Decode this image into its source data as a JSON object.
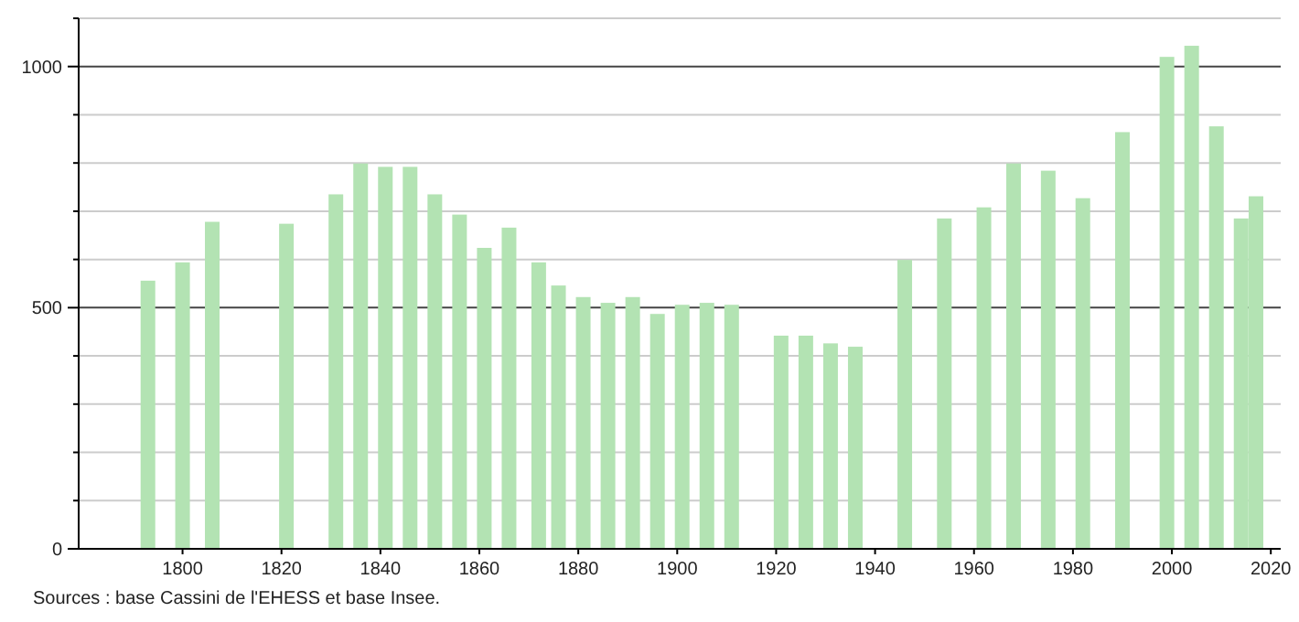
{
  "chart_data": {
    "type": "bar",
    "x": [
      1793,
      1800,
      1806,
      1821,
      1831,
      1836,
      1841,
      1846,
      1851,
      1856,
      1861,
      1866,
      1872,
      1876,
      1881,
      1886,
      1891,
      1896,
      1901,
      1906,
      1911,
      1921,
      1926,
      1931,
      1936,
      1946,
      1954,
      1962,
      1968,
      1975,
      1982,
      1990,
      1999,
      2004,
      2009,
      2014,
      2017
    ],
    "values": [
      556,
      594,
      678,
      674,
      735,
      799,
      792,
      792,
      735,
      693,
      624,
      666,
      594,
      546,
      522,
      510,
      522,
      487,
      506,
      510,
      506,
      442,
      442,
      426,
      419,
      599,
      685,
      708,
      799,
      784,
      727,
      864,
      1020,
      1043,
      876,
      685,
      731
    ],
    "color": "#b3e3b3",
    "xlim": [
      1779,
      2022
    ],
    "xticks": [
      1800,
      1820,
      1840,
      1860,
      1880,
      1900,
      1920,
      1940,
      1960,
      1980,
      2000,
      2020
    ],
    "ylim": [
      0,
      1100
    ],
    "yticks": [
      0,
      {
        "value": 100,
        "label": null
      },
      {
        "value": 200,
        "label": null
      },
      {
        "value": 300,
        "label": null
      },
      {
        "value": 400,
        "label": null
      },
      500,
      {
        "value": 600,
        "label": null
      },
      {
        "value": 700,
        "label": null
      },
      {
        "value": 800,
        "label": null
      },
      {
        "value": 900,
        "label": null
      },
      1000,
      {
        "value": 1100,
        "label": null
      }
    ],
    "grid": true,
    "annotations": [
      "Sources : base Cassini de l'EHESS et base Insee."
    ]
  }
}
